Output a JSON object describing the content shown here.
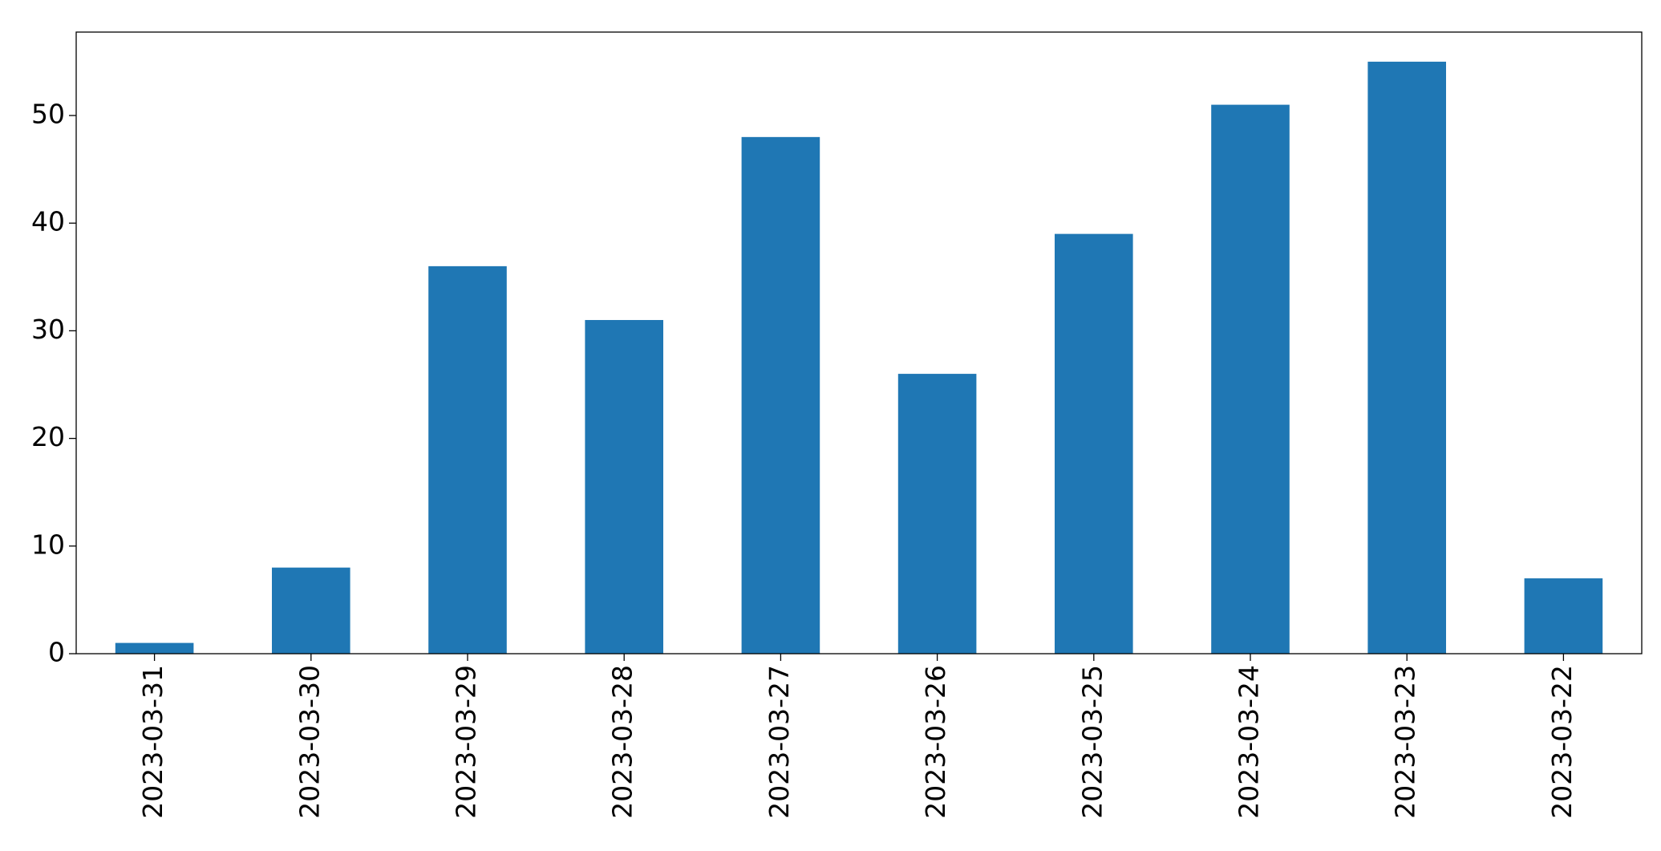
{
  "chart_data": {
    "type": "bar",
    "categories": [
      "2023-03-31",
      "2023-03-30",
      "2023-03-29",
      "2023-03-28",
      "2023-03-27",
      "2023-03-26",
      "2023-03-25",
      "2023-03-24",
      "2023-03-23",
      "2023-03-22"
    ],
    "values": [
      1,
      8,
      36,
      31,
      48,
      26,
      39,
      51,
      55,
      7
    ],
    "color": "#1f77b4",
    "ylim": [
      0,
      57.75
    ],
    "yticks": [
      0,
      10,
      20,
      30,
      40,
      50
    ],
    "grid": false
  }
}
